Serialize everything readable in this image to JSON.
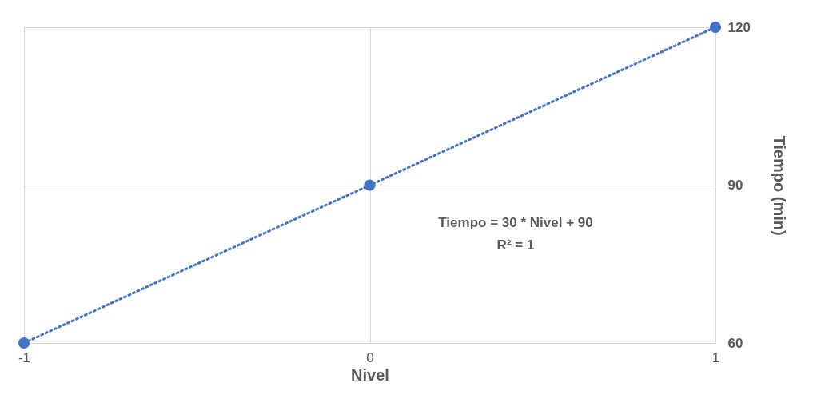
{
  "chart_data": {
    "type": "scatter",
    "xlabel": "Nivel",
    "ylabel": "Tiempo (min)",
    "series": [
      {
        "type": "line",
        "color": "#4472c4",
        "x": [
          -1,
          1
        ],
        "values": [
          60,
          120
        ],
        "line_style": "dotted",
        "marker": "none"
      },
      {
        "type": "scatter",
        "color": "#4472c4",
        "x": [
          -1,
          0,
          1
        ],
        "values": [
          60,
          90,
          120
        ],
        "marker": "circle"
      }
    ],
    "xlim": [
      -1,
      1
    ],
    "ylim": [
      60,
      120
    ],
    "xticks": [
      -1,
      0,
      1
    ],
    "yticks": [
      60,
      90,
      120
    ],
    "grid": true,
    "legend": false,
    "annotations": [
      "Tiempo = 30 * Nivel + 90",
      "R² = 1"
    ]
  }
}
